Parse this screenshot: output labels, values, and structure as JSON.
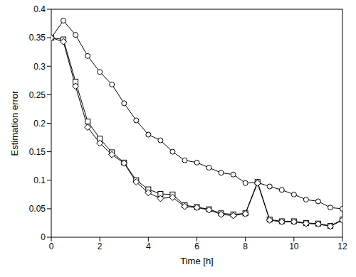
{
  "chart_data": {
    "type": "line",
    "x_label": "Time [h]",
    "y_label": "Estimation error",
    "x": [
      0,
      0.5,
      1,
      1.5,
      2,
      2.5,
      3,
      3.5,
      4,
      4.5,
      5,
      5.5,
      6,
      6.5,
      7,
      7.5,
      8,
      8.5,
      9,
      9.5,
      10,
      10.5,
      11,
      11.5,
      12
    ],
    "series": [
      {
        "color": "#000000",
        "marker": "circle",
        "values": [
          0.35,
          0.38,
          0.355,
          0.318,
          0.29,
          0.268,
          0.235,
          0.205,
          0.18,
          0.17,
          0.15,
          0.135,
          0.131,
          0.122,
          0.113,
          0.11,
          0.095,
          0.096,
          0.089,
          0.083,
          0.075,
          0.066,
          0.063,
          0.052,
          0.05
        ]
      },
      {
        "color": "#000000",
        "marker": "square",
        "values": [
          0.35,
          0.347,
          0.273,
          0.203,
          0.173,
          0.149,
          0.131,
          0.1,
          0.084,
          0.076,
          0.075,
          0.056,
          0.053,
          0.049,
          0.042,
          0.04,
          0.042,
          0.097,
          0.031,
          0.028,
          0.028,
          0.025,
          0.024,
          0.02,
          0.031
        ]
      },
      {
        "color": "#000000",
        "marker": "diamond",
        "values": [
          0.35,
          0.343,
          0.265,
          0.193,
          0.165,
          0.145,
          0.13,
          0.097,
          0.078,
          0.068,
          0.07,
          0.054,
          0.052,
          0.048,
          0.04,
          0.038,
          0.041,
          0.095,
          0.03,
          0.027,
          0.027,
          0.024,
          0.023,
          0.019,
          0.03
        ]
      }
    ],
    "xlim": [
      0,
      12
    ],
    "ylim": [
      0,
      0.4
    ],
    "xticks": [
      0,
      2,
      4,
      6,
      8,
      10,
      12
    ],
    "yticks": [
      0,
      0.05,
      0.1,
      0.15,
      0.2,
      0.25,
      0.3,
      0.35,
      0.4
    ],
    "grid": false
  }
}
